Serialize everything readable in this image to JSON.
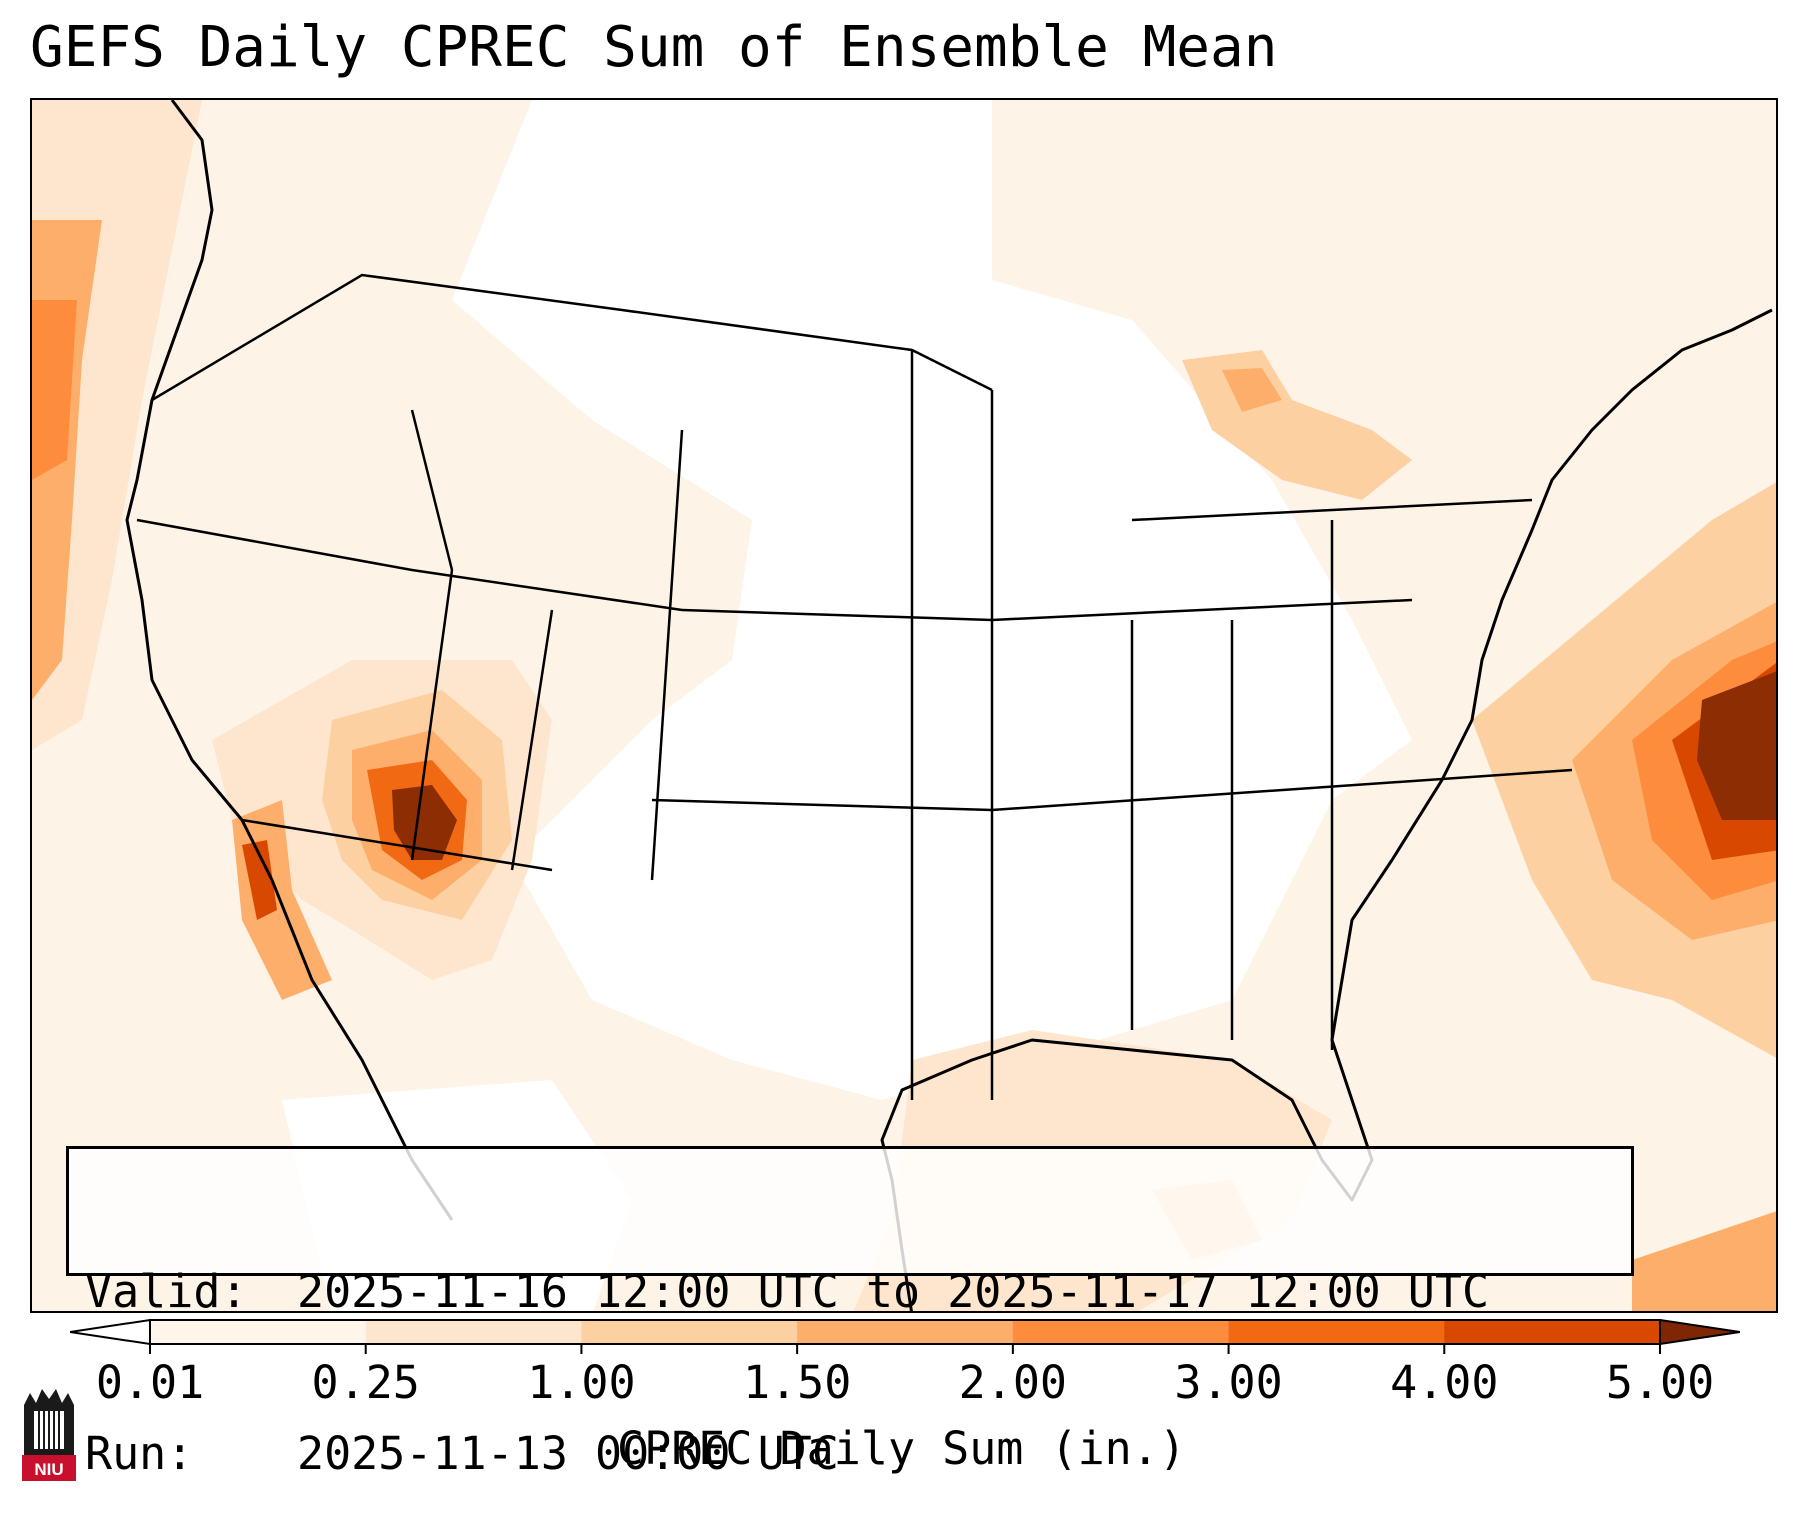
{
  "title": "GEFS Daily CPREC Sum of Ensemble Mean",
  "info": {
    "valid_label": "Valid:",
    "valid_value": "2025-11-16 12:00 UTC to 2025-11-17 12:00 UTC",
    "run_label": "Run:",
    "run_value": "2025-11-13 00:00 UTC"
  },
  "colorbar": {
    "label": "CPREC Daily Sum (in.)",
    "ticks": [
      "0.01",
      "0.25",
      "1.00",
      "1.50",
      "2.00",
      "3.00",
      "4.00",
      "5.00"
    ],
    "colors": [
      "#fff5eb",
      "#fee6ce",
      "#fdd0a2",
      "#fdae6b",
      "#fd8d3c",
      "#f16913",
      "#d94801",
      "#8c2d04"
    ],
    "under_color": "#ffffff",
    "over_color": "#7f2704"
  },
  "logo": {
    "text": "NIU",
    "color": "#c8102e"
  },
  "map": {
    "layers": [
      "precipitation-field",
      "coastlines",
      "country-borders",
      "state-borders"
    ],
    "region": "Contiguous United States"
  }
}
